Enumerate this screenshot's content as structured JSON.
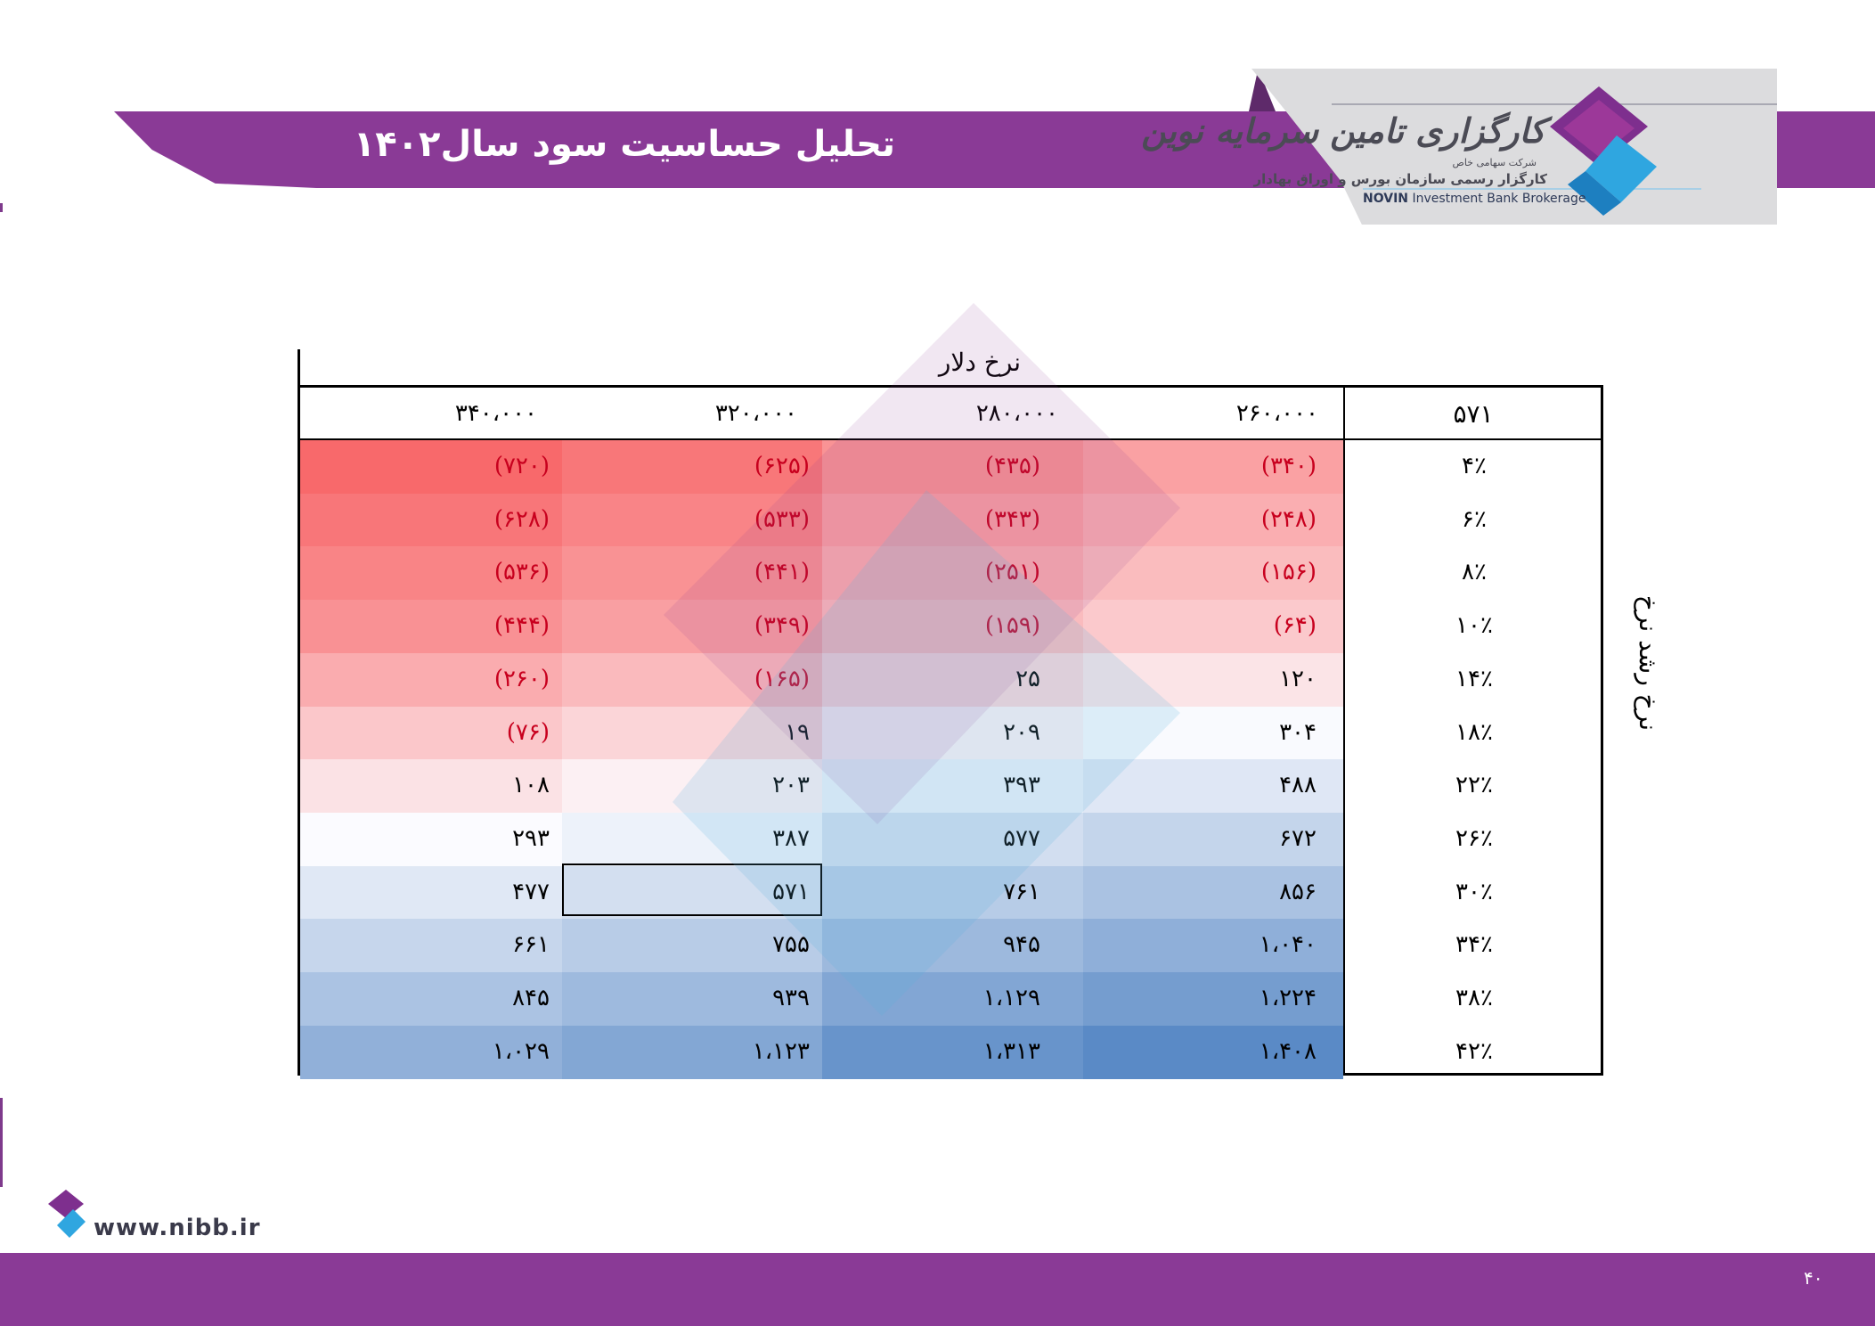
{
  "header": {
    "title": "تحلیل حساسیت سود سال۱۴۰۲"
  },
  "logo": {
    "fa_title": "کارگزاری تامین سرمایه نوین",
    "fa_type": "شرکت سهامی خاص",
    "fa_sub": "کارگزار رسمی سازمان بورس و اوراق بهادار",
    "en_bold": "NOVIN",
    "en_rest": " Investment Bank Brokerage"
  },
  "table": {
    "corner_value": "۵۷۱",
    "column_axis_label": "نرخ دلار",
    "row_axis_label": "نرخ رشد نرخ",
    "columns": [
      "۲۶۰،۰۰۰",
      "۲۸۰،۰۰۰",
      "۳۲۰،۰۰۰",
      "۳۴۰،۰۰۰"
    ],
    "rows": [
      {
        "rate": "۴٪",
        "values": [
          "(۳۴۰)",
          "(۴۳۵)",
          "(۶۲۵)",
          "(۷۲۰)"
        ]
      },
      {
        "rate": "۶٪",
        "values": [
          "(۲۴۸)",
          "(۳۴۳)",
          "(۵۳۳)",
          "(۶۲۸)"
        ]
      },
      {
        "rate": "۸٪",
        "values": [
          "(۱۵۶)",
          "(۲۵۱)",
          "(۴۴۱)",
          "(۵۳۶)"
        ]
      },
      {
        "rate": "۱۰٪",
        "values": [
          "(۶۴)",
          "(۱۵۹)",
          "(۳۴۹)",
          "(۴۴۴)"
        ]
      },
      {
        "rate": "۱۴٪",
        "values": [
          "۱۲۰",
          "۲۵",
          "(۱۶۵)",
          "(۲۶۰)"
        ]
      },
      {
        "rate": "۱۸٪",
        "values": [
          "۳۰۴",
          "۲۰۹",
          "۱۹",
          "(۷۶)"
        ]
      },
      {
        "rate": "۲۲٪",
        "values": [
          "۴۸۸",
          "۳۹۳",
          "۲۰۳",
          "۱۰۸"
        ]
      },
      {
        "rate": "۲۶٪",
        "values": [
          "۶۷۲",
          "۵۷۷",
          "۳۸۷",
          "۲۹۳"
        ]
      },
      {
        "rate": "۳۰٪",
        "values": [
          "۸۵۶",
          "۷۶۱",
          "۵۷۱",
          "۴۷۷"
        ]
      },
      {
        "rate": "۳۴٪",
        "values": [
          "۱،۰۴۰",
          "۹۴۵",
          "۷۵۵",
          "۶۶۱"
        ]
      },
      {
        "rate": "۳۸٪",
        "values": [
          "۱،۲۲۴",
          "۱،۱۲۹",
          "۹۳۹",
          "۸۴۵"
        ]
      },
      {
        "rate": "۴۲٪",
        "values": [
          "۱،۴۰۸",
          "۱،۳۱۳",
          "۱،۱۲۳",
          "۱،۰۲۹"
        ]
      }
    ],
    "numeric": [
      [
        -340,
        -435,
        -625,
        -720
      ],
      [
        -248,
        -343,
        -533,
        -628
      ],
      [
        -156,
        -251,
        -441,
        -536
      ],
      [
        -64,
        -159,
        -349,
        -444
      ],
      [
        120,
        25,
        -165,
        -260
      ],
      [
        304,
        209,
        19,
        -76
      ],
      [
        488,
        393,
        203,
        108
      ],
      [
        672,
        577,
        387,
        293
      ],
      [
        856,
        761,
        571,
        477
      ],
      [
        1040,
        945,
        755,
        661
      ],
      [
        1224,
        1129,
        939,
        845
      ],
      [
        1408,
        1313,
        1123,
        1029
      ]
    ],
    "highlight": {
      "row": 8,
      "col": 2
    },
    "colors": {
      "negative_text": "#c8001e",
      "low": "#f8696b",
      "mid": "#fcfcff",
      "high": "#5a8ac6"
    }
  },
  "footer": {
    "url": "www.nibb.ir",
    "page_number": "۴۰"
  },
  "colors": {
    "brand_purple": "#8a3a96",
    "logo_gray": "#dcdcde"
  }
}
